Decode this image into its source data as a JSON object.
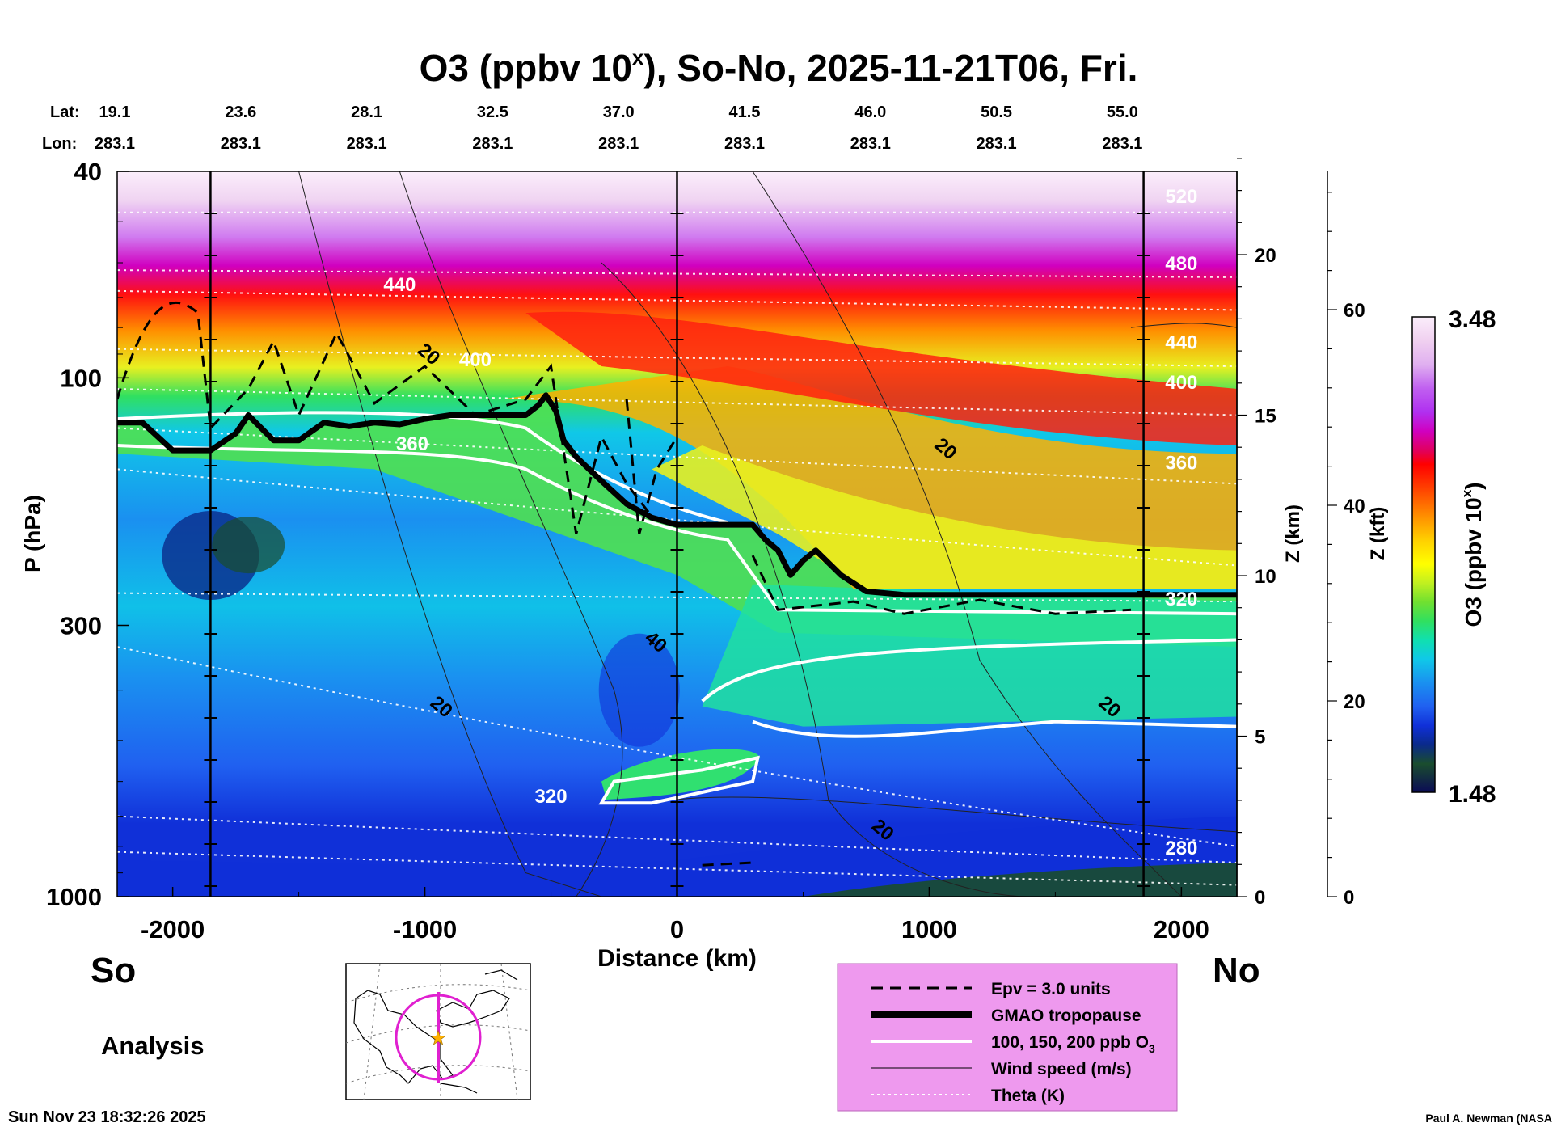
{
  "chart_data": {
    "type": "heatmap",
    "title": "O3 (ppbv 10",
    "title_sup": "x",
    "title_rest": "), So-No, 2025-11-21T06, Fri.",
    "lat_label": "Lat:",
    "lon_label": "Lon:",
    "lat_ticks": [
      "19.1",
      "23.6",
      "28.1",
      "32.5",
      "37.0",
      "41.5",
      "46.0",
      "50.5",
      "55.0"
    ],
    "lon_ticks": [
      "283.1",
      "283.1",
      "283.1",
      "283.1",
      "283.1",
      "283.1",
      "283.1",
      "283.1",
      "283.1"
    ],
    "xlabel": "Distance (km)",
    "xlim": [
      -2220,
      2220
    ],
    "x_ticks": [
      -2000,
      -1000,
      0,
      1000,
      2000
    ],
    "ylabel": "P (hPa)",
    "y_scale": "log",
    "ylim": [
      1000,
      40
    ],
    "y_ticks": [
      40,
      100,
      300,
      1000
    ],
    "z_km_label": "Z (km)",
    "z_km_ticks": [
      0,
      5,
      10,
      15,
      20
    ],
    "z_kft_label": "Z (kft)",
    "z_kft_ticks": [
      0,
      20,
      40,
      60
    ],
    "colorbar": {
      "label": "O3 (ppbv 10",
      "label_sup": "x",
      "label_rest": ")",
      "max": "3.48",
      "min": "1.48",
      "colors": [
        "#0b0b55",
        "#1a4d2e",
        "#0a2a8a",
        "#1030d8",
        "#2060f0",
        "#1a90f0",
        "#10c0e8",
        "#10e0c0",
        "#20e880",
        "#50e040",
        "#90e030",
        "#d0f020",
        "#ffff00",
        "#ffd000",
        "#ffa000",
        "#ff7000",
        "#ff3000",
        "#ff0000",
        "#e00060",
        "#d000c0",
        "#b030f0",
        "#c060f0",
        "#d890f0",
        "#e8b8f0",
        "#f4dcf4",
        "#fbeefb"
      ]
    },
    "left_label": "So",
    "right_label": "No",
    "mode_label": "Analysis",
    "theta_labels": [
      "520",
      "480",
      "440",
      "440",
      "400",
      "400",
      "360",
      "360",
      "320",
      "320",
      "280"
    ],
    "wind_labels": [
      "20",
      "20",
      "20",
      "40",
      "20",
      "20"
    ],
    "legend": [
      {
        "label": "Epv = 3.0 units",
        "style": "dashed"
      },
      {
        "label": "GMAO tropopause",
        "style": "thick"
      },
      {
        "label": "100, 150, 200 ppb O",
        "sub": "3",
        "style": "white"
      },
      {
        "label": "Wind speed (m/s)",
        "style": "thin"
      },
      {
        "label": "Theta (K)",
        "style": "dotted"
      }
    ],
    "tropopause": {
      "x": [
        -2220,
        -2120,
        -2000,
        -1850,
        -1750,
        -1700,
        -1600,
        -1500,
        -1400,
        -1300,
        -1200,
        -1100,
        -1000,
        -900,
        -800,
        -700,
        -600,
        -550,
        -520,
        -480,
        -450,
        -400,
        -300,
        -200,
        -100,
        0,
        100,
        200,
        300,
        350,
        400,
        450,
        500,
        550,
        650,
        750,
        900,
        1200,
        1500,
        1800,
        2220
      ],
      "p": [
        122,
        122,
        138,
        138,
        128,
        118,
        132,
        132,
        122,
        124,
        122,
        123,
        120,
        118,
        118,
        118,
        118,
        113,
        108,
        116,
        132,
        142,
        158,
        175,
        186,
        192,
        192,
        192,
        192,
        205,
        215,
        240,
        225,
        215,
        240,
        258,
        262,
        262,
        262,
        262,
        262
      ]
    },
    "vertical_lines_km": [
      -1850,
      0,
      1850
    ]
  },
  "footer": {
    "timestamp": "Sun Nov 23 18:32:26 2025",
    "credit": "Paul A. Newman (NASA"
  },
  "map": {
    "center_marker": "star-icon"
  }
}
